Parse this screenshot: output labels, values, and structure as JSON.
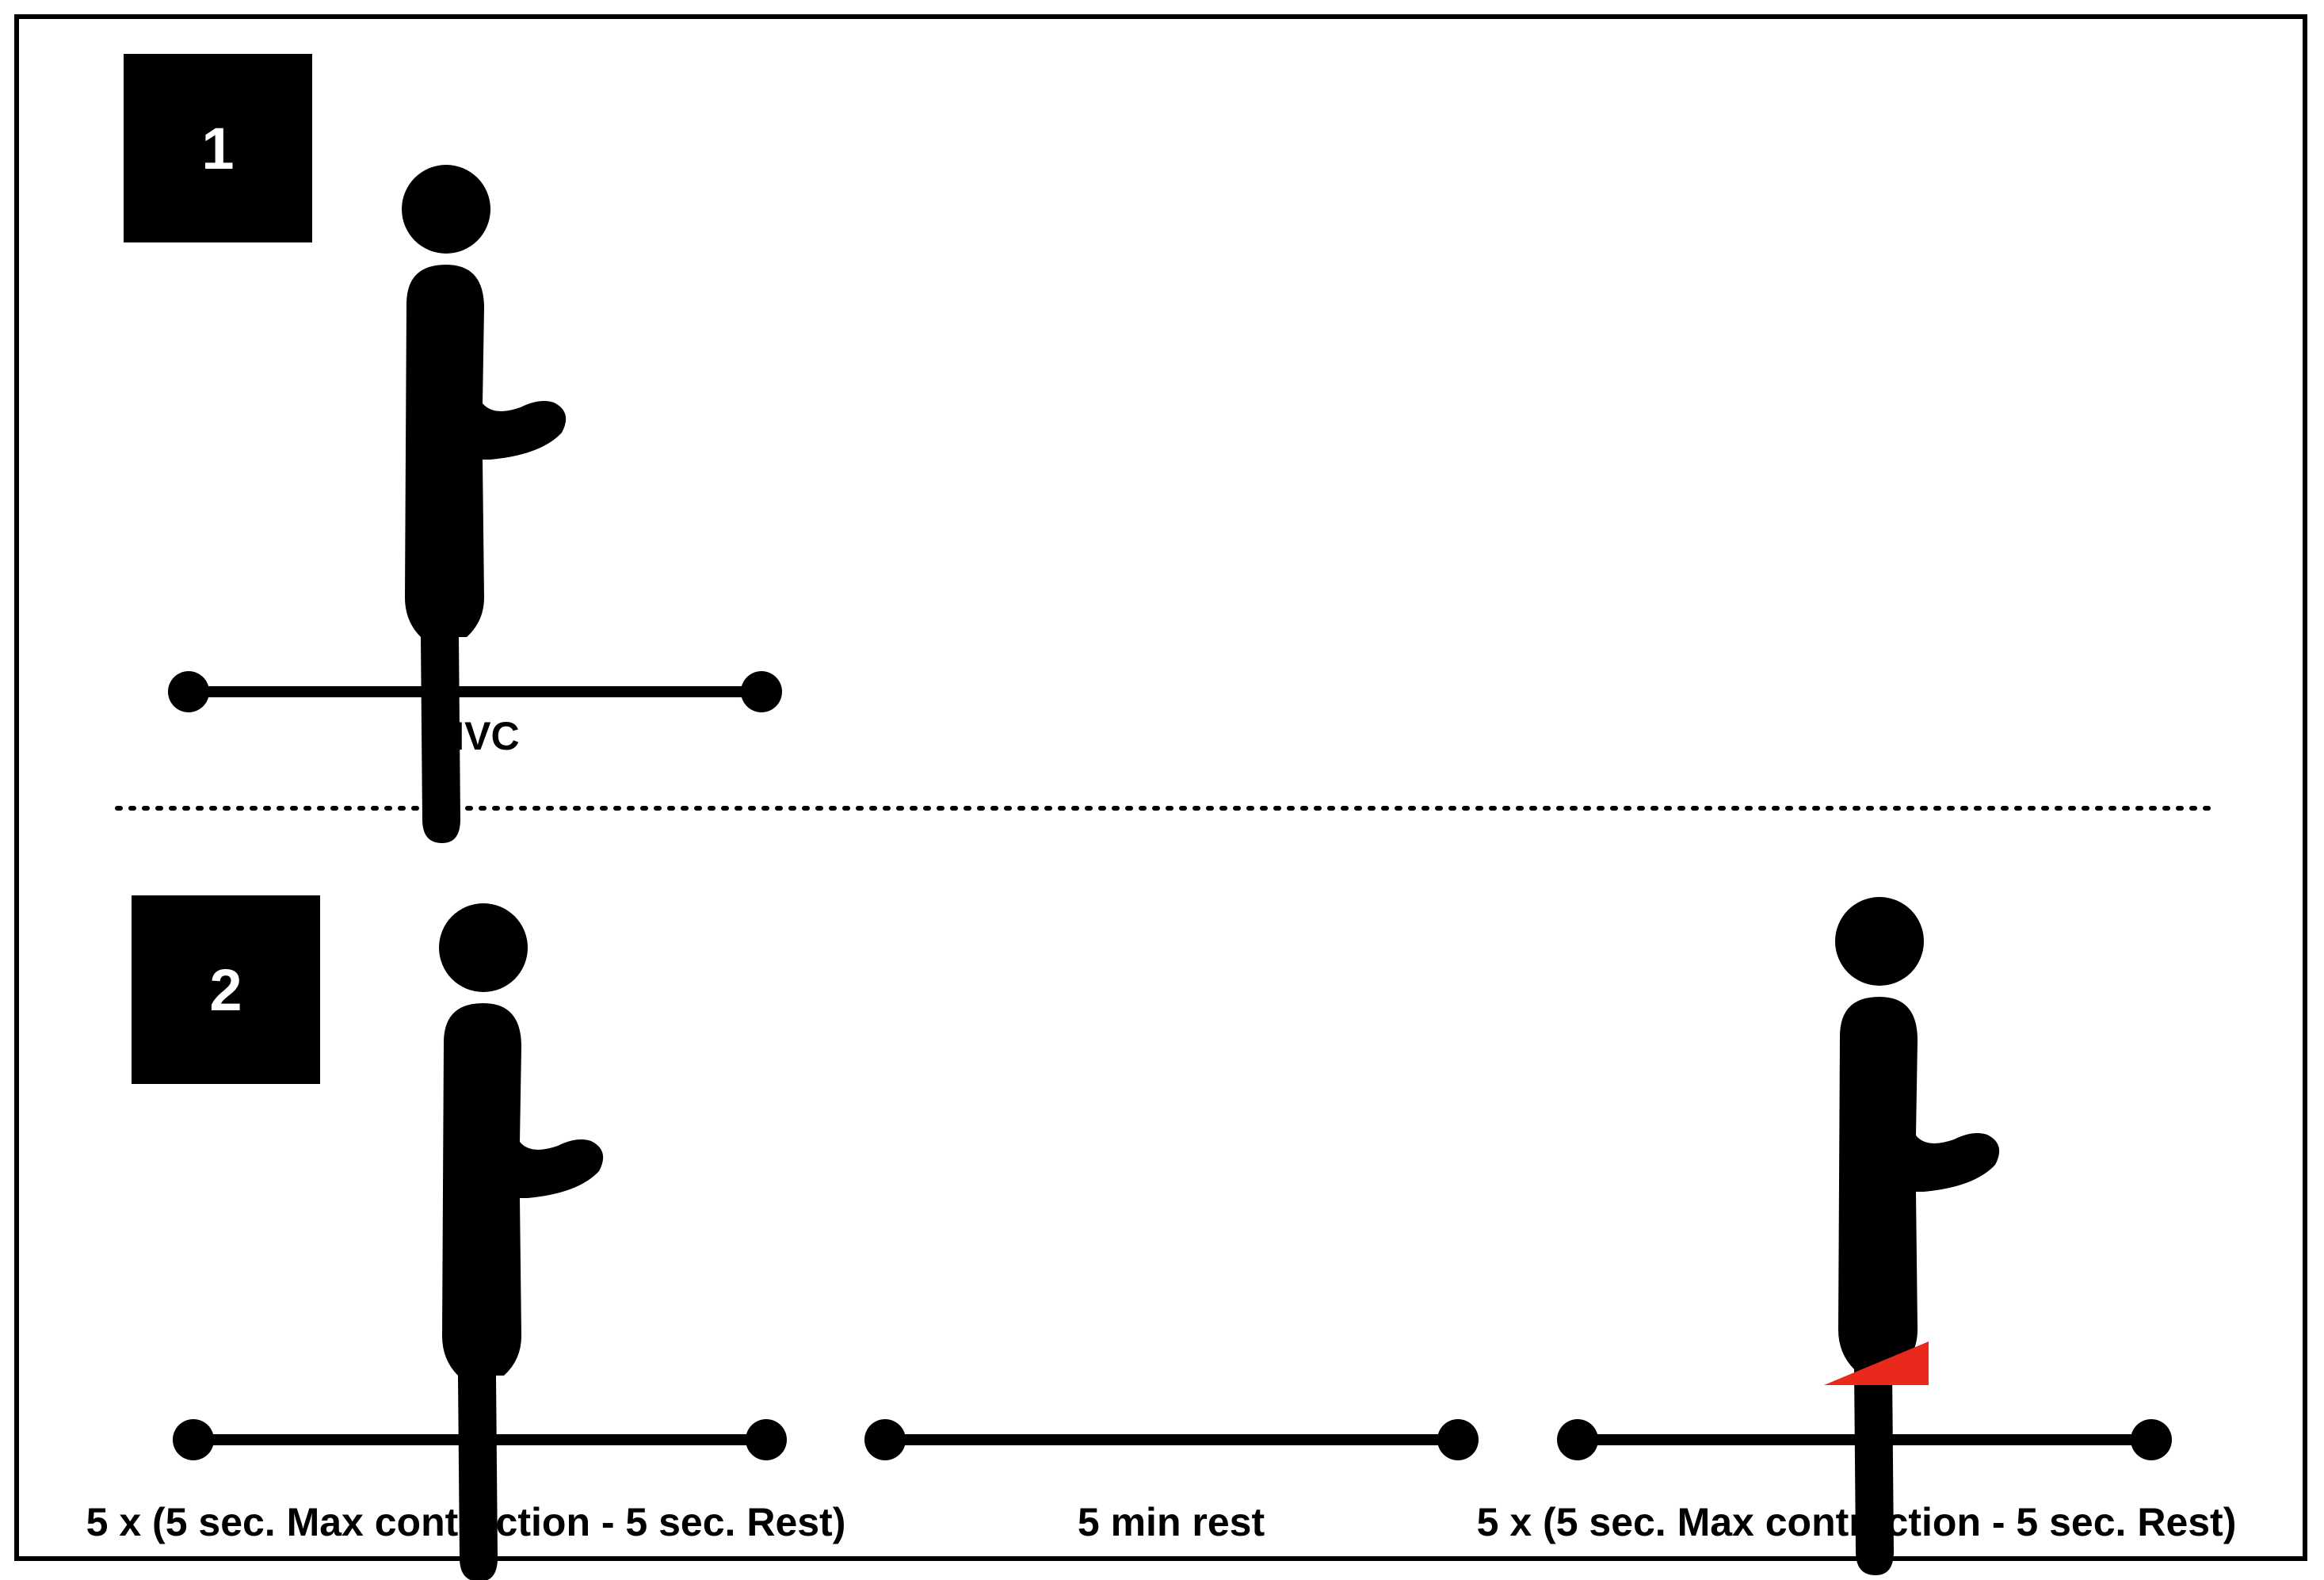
{
  "panels": [
    {
      "step_number": "1",
      "timelines": [
        {
          "label": "MVC"
        }
      ]
    },
    {
      "step_number": "2",
      "timelines": [
        {
          "label": "5 x (5 sec. Max contraction - 5 sec. Rest)"
        },
        {
          "label": "5 min rest"
        },
        {
          "label": "5 x (5 sec. Max contraction - 5 sec. Rest)"
        }
      ]
    }
  ],
  "colors": {
    "figure": "#000000",
    "wedge": "#e8291c",
    "background": "#ffffff"
  },
  "icons": [
    "standing-person-icon",
    "heel-wedge-icon"
  ]
}
